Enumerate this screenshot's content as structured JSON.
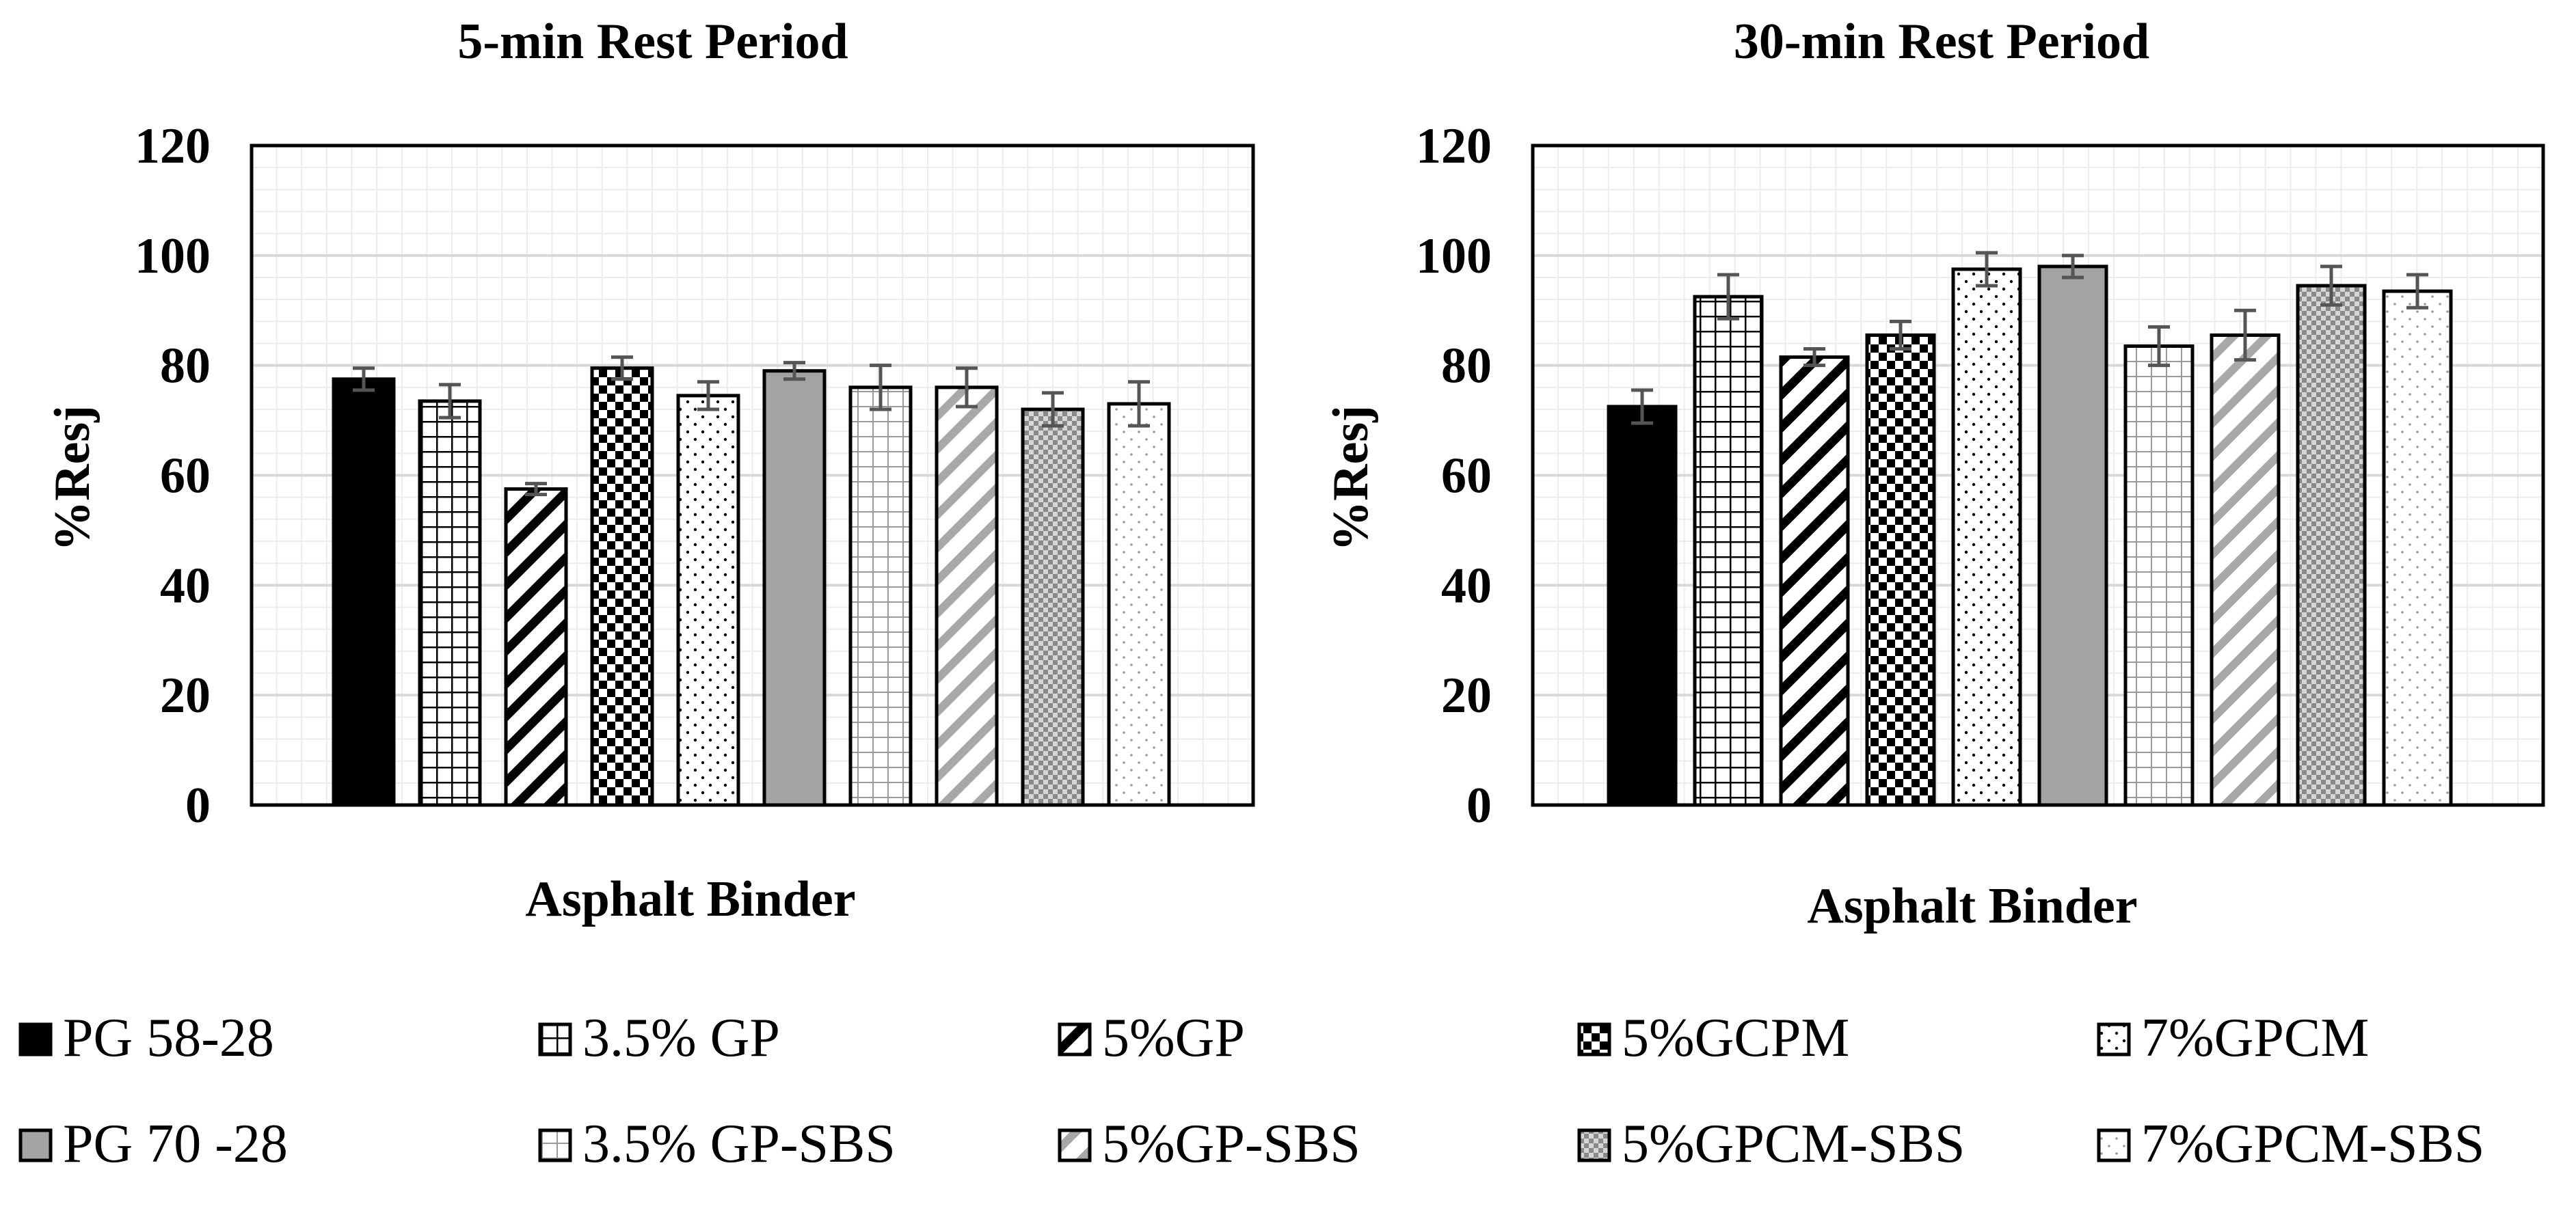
{
  "chart_data": [
    {
      "type": "bar",
      "title": "5-min Rest Period",
      "xlabel": "Asphalt Binder",
      "ylabel": "%Resj",
      "ylim": [
        0,
        120
      ],
      "yticks": [
        0,
        20,
        40,
        60,
        80,
        100,
        120
      ],
      "grid": true,
      "categories": [
        "PG 58-28",
        "3.5% GP",
        "5%GP",
        "5%GCPM",
        "7%GPCM",
        "PG 70 -28",
        "3.5% GP-SBS",
        "5%GP-SBS",
        "5%GPCM-SBS",
        "7%GPCM-SBS"
      ],
      "values": [
        77.5,
        73.5,
        57.5,
        79.5,
        74.5,
        79,
        76,
        76,
        72,
        73
      ],
      "errors": [
        2,
        3,
        1,
        2,
        2.5,
        1.5,
        4,
        3.5,
        3,
        4
      ]
    },
    {
      "type": "bar",
      "title": "30-min Rest Period",
      "xlabel": "Asphalt Binder",
      "ylabel": "%Resj",
      "ylim": [
        0,
        120
      ],
      "yticks": [
        0,
        20,
        40,
        60,
        80,
        100,
        120
      ],
      "grid": true,
      "categories": [
        "PG 58-28",
        "3.5% GP",
        "5%GP",
        "5%GCPM",
        "7%GPCM",
        "PG 70 -28",
        "3.5% GP-SBS",
        "5%GP-SBS",
        "5%GPCM-SBS",
        "7%GPCM-SBS"
      ],
      "values": [
        72.5,
        92.5,
        81.5,
        85.5,
        97.5,
        98,
        83.5,
        85.5,
        94.5,
        93.5
      ],
      "errors": [
        3,
        4,
        1.5,
        2.5,
        3,
        2,
        3.5,
        4.5,
        3.5,
        3
      ]
    }
  ],
  "legend": {
    "position": "bottom",
    "items": [
      {
        "label": "PG 58-28",
        "pattern": "solid-black"
      },
      {
        "label": "3.5% GP",
        "pattern": "grid-large"
      },
      {
        "label": "5%GP",
        "pattern": "diagonal-wide"
      },
      {
        "label": "5%GCPM",
        "pattern": "checker"
      },
      {
        "label": "7%GPCM",
        "pattern": "dots"
      },
      {
        "label": "PG 70 -28",
        "pattern": "solid-gray"
      },
      {
        "label": "3.5% GP-SBS",
        "pattern": "grid-light"
      },
      {
        "label": "5%GP-SBS",
        "pattern": "diagonal-light"
      },
      {
        "label": "5%GPCM-SBS",
        "pattern": "checker-small"
      },
      {
        "label": "7%GPCM-SBS",
        "pattern": "dots-light"
      }
    ]
  },
  "colors": {
    "axis": "#000000",
    "gridline": "#d8d8d8",
    "minor_gridline": "#ececec",
    "error_bar": "#555555",
    "solid_gray": "#a3a3a3",
    "light_line": "#999999"
  }
}
